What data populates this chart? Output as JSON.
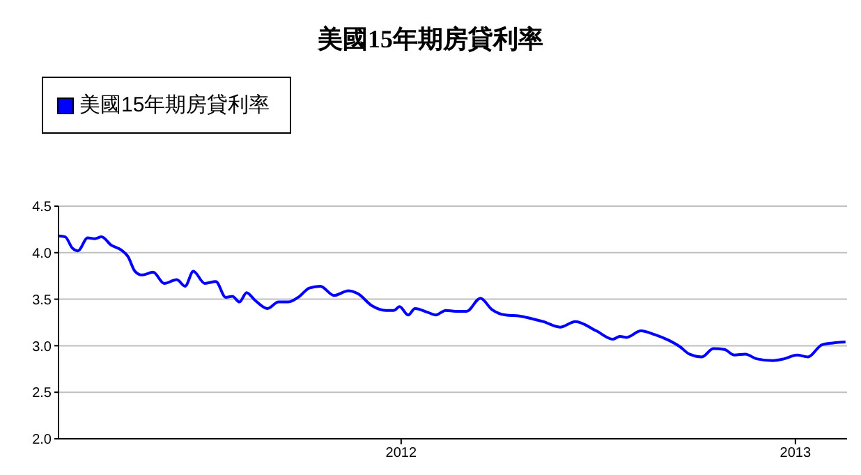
{
  "chart_data": {
    "type": "line",
    "title": "美國15年期房貸利率",
    "x": [
      2011.131,
      2011.148,
      2011.166,
      2011.18,
      2011.205,
      2011.223,
      2011.24,
      2011.265,
      2011.29,
      2011.307,
      2011.325,
      2011.343,
      2011.371,
      2011.399,
      2011.431,
      2011.452,
      2011.473,
      2011.502,
      2011.53,
      2011.555,
      2011.572,
      2011.59,
      2011.608,
      2011.629,
      2011.661,
      2011.689,
      2011.714,
      2011.742,
      2011.767,
      2011.795,
      2011.83,
      2011.866,
      2011.89,
      2011.926,
      2011.961,
      2011.982,
      2011.996,
      2012.018,
      2012.035,
      2012.067,
      2012.088,
      2012.113,
      2012.138,
      2012.166,
      2012.201,
      2012.23,
      2012.265,
      2012.3,
      2012.332,
      2012.36,
      2012.403,
      2012.442,
      2012.495,
      2012.537,
      2012.555,
      2012.572,
      2012.608,
      2012.643,
      2012.678,
      2012.707,
      2012.731,
      2012.763,
      2012.792,
      2012.82,
      2012.845,
      2012.873,
      2012.901,
      2012.943,
      2012.972,
      2013.004,
      2013.032,
      2013.067,
      2013.095,
      2013.127
    ],
    "series": [
      {
        "name": "美國15年期房貸利率",
        "color": "#0000ff",
        "values": [
          4.18,
          4.17,
          4.05,
          4.02,
          4.16,
          4.15,
          4.17,
          4.08,
          4.03,
          3.96,
          3.8,
          3.76,
          3.79,
          3.67,
          3.71,
          3.64,
          3.8,
          3.67,
          3.69,
          3.52,
          3.53,
          3.47,
          3.57,
          3.49,
          3.4,
          3.47,
          3.47,
          3.53,
          3.62,
          3.64,
          3.54,
          3.59,
          3.56,
          3.43,
          3.38,
          3.38,
          3.42,
          3.33,
          3.4,
          3.36,
          3.33,
          3.38,
          3.37,
          3.37,
          3.51,
          3.39,
          3.33,
          3.32,
          3.29,
          3.26,
          3.2,
          3.26,
          3.16,
          3.07,
          3.1,
          3.09,
          3.16,
          3.12,
          3.06,
          2.99,
          2.91,
          2.88,
          2.97,
          2.96,
          2.9,
          2.91,
          2.86,
          2.84,
          2.86,
          2.9,
          2.88,
          3.01,
          3.03,
          3.04
        ]
      }
    ],
    "xlim": [
      2011.131,
      2013.131
    ],
    "xticks": [
      2012,
      2013
    ],
    "ylim": [
      2,
      4.5
    ],
    "yticks": [
      {
        "value": 2,
        "label": "2.0"
      },
      {
        "value": 2.5,
        "label": "2.5"
      },
      {
        "value": 3,
        "label": "3.0"
      },
      {
        "value": 3.5,
        "label": "3.5"
      },
      {
        "value": 4,
        "label": "4.0"
      },
      {
        "value": 4.5,
        "label": "4.5"
      }
    ],
    "grid": "y",
    "legend": "top left",
    "marker": "none",
    "line_style": "solid"
  }
}
